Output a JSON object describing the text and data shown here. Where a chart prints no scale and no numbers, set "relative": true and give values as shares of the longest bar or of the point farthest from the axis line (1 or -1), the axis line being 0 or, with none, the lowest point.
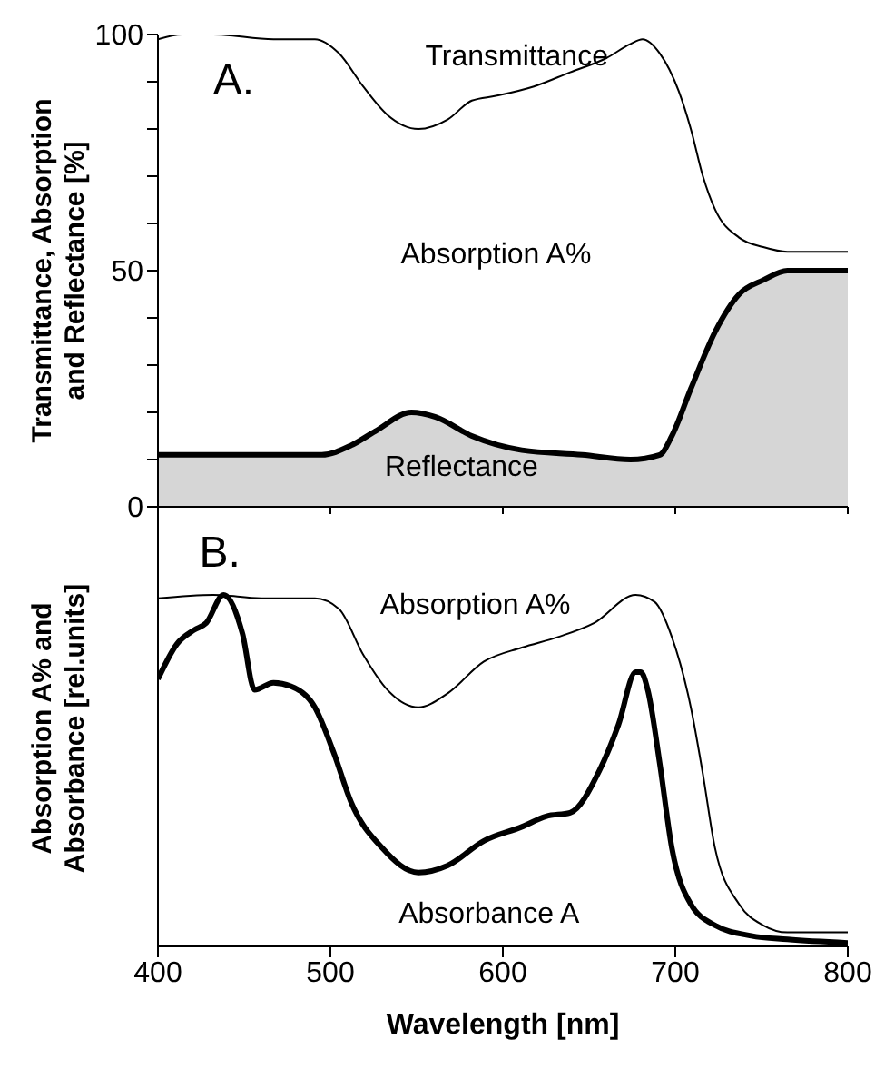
{
  "chart_data": [
    {
      "type": "line",
      "ylabel": "Transmittance, Absorption and Reflectance [%]",
      "xlim": [
        400,
        800
      ],
      "xticks": [
        400,
        500,
        600,
        700,
        800
      ],
      "ylim": [
        0,
        100
      ],
      "yticks": [
        0,
        {
          "value": 10,
          "label": null
        },
        {
          "value": 20,
          "label": null
        },
        {
          "value": 30,
          "label": null
        },
        {
          "value": 40,
          "label": null
        },
        50,
        {
          "value": 60,
          "label": null
        },
        {
          "value": 70,
          "label": null
        },
        {
          "value": 80,
          "label": null
        },
        {
          "value": 90,
          "label": null
        },
        100
      ],
      "tick_labels": "y",
      "series": [
        {
          "type": "line",
          "color": "#000000",
          "x": [
            400,
            414,
            432,
            467,
            491,
            505,
            519,
            533,
            551,
            568,
            582,
            596,
            618,
            639,
            660,
            674,
            681,
            691,
            702,
            709,
            716,
            723,
            737,
            751,
            765,
            800
          ],
          "values": [
            99,
            100,
            100,
            99,
            99,
            96,
            89,
            83,
            80,
            82,
            86,
            87,
            89,
            92,
            95,
            98,
            99,
            96,
            88,
            80,
            70,
            63,
            57,
            55,
            54,
            54
          ]
        },
        {
          "type": "area",
          "color": "#000000",
          "x": [
            400,
            449,
            495,
            512,
            526,
            547,
            561,
            582,
            611,
            646,
            674,
            691,
            698,
            709,
            723,
            737,
            751,
            765,
            800
          ],
          "values": [
            11,
            11,
            11,
            13,
            16,
            20,
            19,
            15,
            12,
            11,
            10,
            11,
            15,
            25,
            37,
            45,
            48,
            50,
            50
          ]
        }
      ],
      "annotations": [
        "A.",
        "Transmittance",
        "Absorption A%",
        "Reflectance"
      ]
    },
    {
      "type": "line",
      "relative": true,
      "xlabel": "Wavelength [nm]",
      "ylabel": "Absorption A% and Absorbance [rel.units]",
      "xlim": [
        400,
        800
      ],
      "xticks": [
        400,
        500,
        600,
        700,
        800
      ],
      "tick_labels": "x",
      "series": [
        {
          "type": "line",
          "color": "#000000",
          "x": [
            400,
            432,
            460,
            491,
            505,
            519,
            533,
            551,
            568,
            589,
            611,
            632,
            653,
            677,
            688,
            698,
            709,
            716,
            723,
            737,
            751,
            765,
            800
          ],
          "values": [
            0.99,
            1,
            0.99,
            0.99,
            0.96,
            0.83,
            0.73,
            0.68,
            0.72,
            0.81,
            0.85,
            0.88,
            0.92,
            1,
            0.98,
            0.88,
            0.68,
            0.49,
            0.28,
            0.12,
            0.06,
            0.04,
            0.04
          ]
        },
        {
          "type": "line",
          "color": "#000000",
          "x": [
            400,
            411,
            421,
            428,
            438,
            449,
            456,
            467,
            477,
            491,
            502,
            512,
            530,
            551,
            568,
            589,
            611,
            625,
            639,
            656,
            667,
            677,
            680,
            684,
            691,
            698,
            709,
            723,
            744,
            765,
            800
          ],
          "values": [
            0.76,
            0.86,
            0.9,
            0.92,
            1,
            0.89,
            0.73,
            0.75,
            0.74,
            0.68,
            0.55,
            0.41,
            0.28,
            0.21,
            0.23,
            0.3,
            0.34,
            0.37,
            0.38,
            0.5,
            0.63,
            0.78,
            0.78,
            0.73,
            0.52,
            0.28,
            0.12,
            0.06,
            0.03,
            0.02,
            0.01
          ]
        }
      ],
      "annotations": [
        "B.",
        "Absorption A%",
        "Absorbance A"
      ]
    }
  ]
}
